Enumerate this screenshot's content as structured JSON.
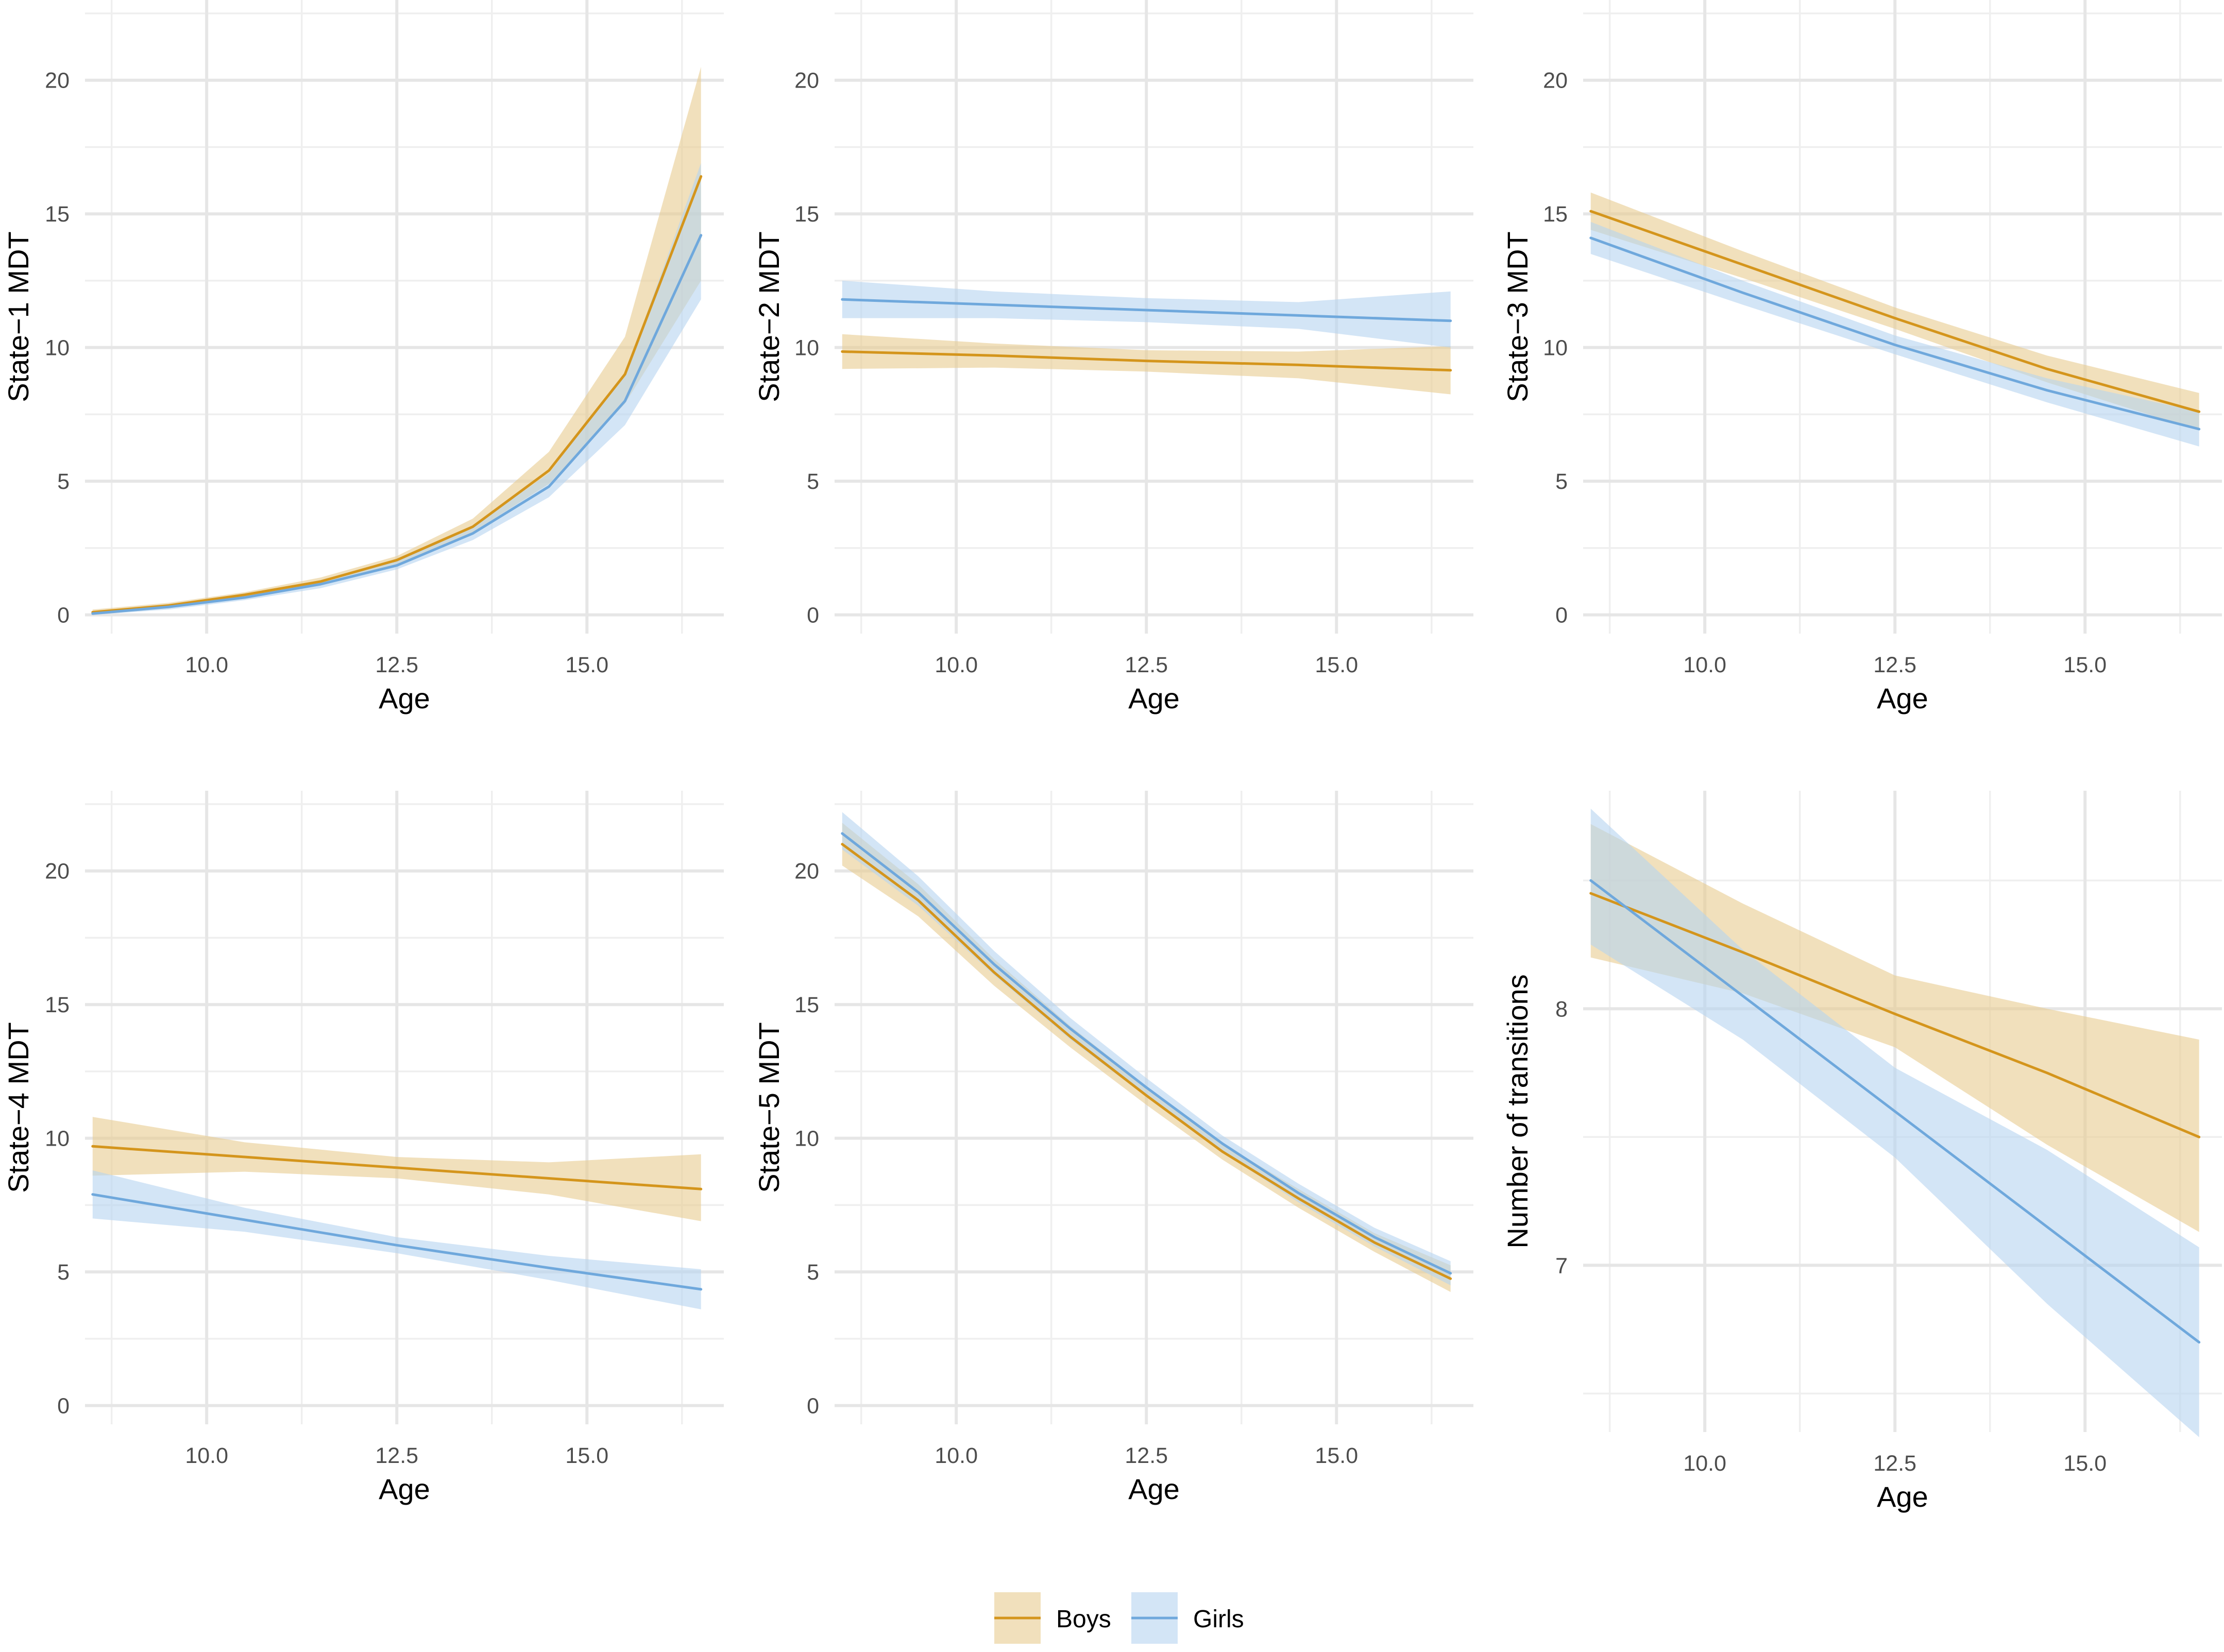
{
  "colors": {
    "boys": "#d4951c",
    "girls": "#6fa8dc",
    "boys_band": "#e8cc90",
    "girls_band": "#b5d3f0"
  },
  "legend": {
    "items": [
      {
        "label": "Boys",
        "color": "#d4951c"
      },
      {
        "label": "Girls",
        "color": "#6fa8dc"
      }
    ]
  },
  "chart_data": [
    {
      "type": "line",
      "xlabel": "Age",
      "ylabel": "State−1 MDT",
      "xlim": [
        8.4,
        16.8
      ],
      "ylim": [
        -0.7,
        23
      ],
      "xticks": [
        "10.0",
        "12.5",
        "15.0"
      ],
      "yticks": [
        "0",
        "5",
        "10",
        "15",
        "20"
      ],
      "series": [
        {
          "name": "Boys",
          "x": [
            8.5,
            9.5,
            10.5,
            11.5,
            12.5,
            13.5,
            14.5,
            15.5,
            16.5
          ],
          "values": [
            0.1,
            0.35,
            0.75,
            1.25,
            2.05,
            3.3,
            5.4,
            9.0,
            16.4
          ],
          "lower": [
            0.0,
            0.25,
            0.65,
            1.1,
            1.9,
            3.1,
            4.9,
            7.9,
            12.5
          ],
          "upper": [
            0.2,
            0.45,
            0.85,
            1.4,
            2.2,
            3.6,
            6.1,
            10.4,
            20.5
          ]
        },
        {
          "name": "Girls",
          "x": [
            8.5,
            9.5,
            10.5,
            11.5,
            12.5,
            13.5,
            14.5,
            15.5,
            16.5
          ],
          "values": [
            0.05,
            0.3,
            0.65,
            1.15,
            1.85,
            3.05,
            4.8,
            8.0,
            14.2
          ],
          "lower": [
            0.0,
            0.2,
            0.55,
            1.0,
            1.7,
            2.8,
            4.4,
            7.1,
            11.8
          ],
          "upper": [
            0.1,
            0.4,
            0.75,
            1.3,
            2.0,
            3.3,
            5.3,
            9.0,
            16.9
          ]
        }
      ]
    },
    {
      "type": "line",
      "xlabel": "Age",
      "ylabel": "State−2 MDT",
      "xlim": [
        8.4,
        16.8
      ],
      "ylim": [
        -0.7,
        23
      ],
      "xticks": [
        "10.0",
        "12.5",
        "15.0"
      ],
      "yticks": [
        "0",
        "5",
        "10",
        "15",
        "20"
      ],
      "series": [
        {
          "name": "Boys",
          "x": [
            8.5,
            10.5,
            12.5,
            14.5,
            16.5
          ],
          "values": [
            9.85,
            9.7,
            9.5,
            9.35,
            9.15
          ],
          "lower": [
            9.2,
            9.25,
            9.1,
            8.85,
            8.25
          ],
          "upper": [
            10.5,
            10.15,
            9.9,
            9.85,
            10.05
          ]
        },
        {
          "name": "Girls",
          "x": [
            8.5,
            10.5,
            12.5,
            14.5,
            16.5
          ],
          "values": [
            11.8,
            11.6,
            11.4,
            11.2,
            11.0
          ],
          "lower": [
            11.1,
            11.1,
            10.95,
            10.7,
            10.0
          ],
          "upper": [
            12.5,
            12.1,
            11.85,
            11.7,
            12.1
          ]
        }
      ]
    },
    {
      "type": "line",
      "xlabel": "Age",
      "ylabel": "State−3 MDT",
      "xlim": [
        8.4,
        16.8
      ],
      "ylim": [
        -0.7,
        23
      ],
      "xticks": [
        "10.0",
        "12.5",
        "15.0"
      ],
      "yticks": [
        "0",
        "5",
        "10",
        "15",
        "20"
      ],
      "series": [
        {
          "name": "Boys",
          "x": [
            8.5,
            10.5,
            12.5,
            14.5,
            16.5
          ],
          "values": [
            15.1,
            13.1,
            11.1,
            9.2,
            7.6
          ],
          "lower": [
            14.4,
            12.6,
            10.7,
            8.7,
            6.9
          ],
          "upper": [
            15.8,
            13.6,
            11.5,
            9.7,
            8.3
          ]
        },
        {
          "name": "Girls",
          "x": [
            8.5,
            10.5,
            12.5,
            14.5,
            16.5
          ],
          "values": [
            14.1,
            12.05,
            10.1,
            8.4,
            6.95
          ],
          "lower": [
            13.5,
            11.6,
            9.75,
            7.95,
            6.3
          ],
          "upper": [
            14.7,
            12.5,
            10.45,
            8.85,
            7.6
          ]
        }
      ]
    },
    {
      "type": "line",
      "xlabel": "Age",
      "ylabel": "State−4 MDT",
      "xlim": [
        8.4,
        16.8
      ],
      "ylim": [
        -0.7,
        23
      ],
      "xticks": [
        "10.0",
        "12.5",
        "15.0"
      ],
      "yticks": [
        "0",
        "5",
        "10",
        "15",
        "20"
      ],
      "series": [
        {
          "name": "Boys",
          "x": [
            8.5,
            10.5,
            12.5,
            14.5,
            16.5
          ],
          "values": [
            9.7,
            9.3,
            8.9,
            8.5,
            8.1
          ],
          "lower": [
            8.6,
            8.75,
            8.5,
            7.9,
            6.9
          ],
          "upper": [
            10.8,
            9.85,
            9.3,
            9.1,
            9.4
          ]
        },
        {
          "name": "Girls",
          "x": [
            8.5,
            10.5,
            12.5,
            14.5,
            16.5
          ],
          "values": [
            7.9,
            6.95,
            6.0,
            5.15,
            4.35
          ],
          "lower": [
            7.0,
            6.5,
            5.7,
            4.7,
            3.6
          ],
          "upper": [
            8.8,
            7.4,
            6.3,
            5.6,
            5.1
          ]
        }
      ]
    },
    {
      "type": "line",
      "xlabel": "Age",
      "ylabel": "State−5 MDT",
      "xlim": [
        8.4,
        16.8
      ],
      "ylim": [
        -0.7,
        23
      ],
      "xticks": [
        "10.0",
        "12.5",
        "15.0"
      ],
      "yticks": [
        "0",
        "5",
        "10",
        "15",
        "20"
      ],
      "series": [
        {
          "name": "Boys",
          "x": [
            8.5,
            9.5,
            10.5,
            11.5,
            12.5,
            13.5,
            14.5,
            15.5,
            16.5
          ],
          "values": [
            21.0,
            18.9,
            16.2,
            13.8,
            11.6,
            9.5,
            7.75,
            6.1,
            4.75
          ],
          "lower": [
            20.2,
            18.3,
            15.7,
            13.4,
            11.25,
            9.2,
            7.4,
            5.75,
            4.25
          ],
          "upper": [
            21.8,
            19.5,
            16.7,
            14.2,
            11.95,
            9.8,
            8.1,
            6.45,
            5.25
          ]
        },
        {
          "name": "Girls",
          "x": [
            8.5,
            9.5,
            10.5,
            11.5,
            12.5,
            13.5,
            14.5,
            15.5,
            16.5
          ],
          "values": [
            21.4,
            19.2,
            16.5,
            14.1,
            11.9,
            9.8,
            7.95,
            6.3,
            4.95
          ],
          "lower": [
            20.8,
            18.7,
            16.1,
            13.7,
            11.55,
            9.5,
            7.6,
            5.95,
            4.5
          ],
          "upper": [
            22.2,
            19.8,
            17.0,
            14.5,
            12.25,
            10.1,
            8.3,
            6.65,
            5.4
          ]
        }
      ]
    },
    {
      "type": "line",
      "xlabel": "Age",
      "ylabel": "Number of transitions",
      "xlim": [
        8.4,
        16.8
      ],
      "ylim": [
        6.35,
        8.85
      ],
      "xticks": [
        "10.0",
        "12.5",
        "15.0"
      ],
      "yticks": [
        "7",
        "8"
      ],
      "series": [
        {
          "name": "Boys",
          "x": [
            8.5,
            10.5,
            12.5,
            14.5,
            16.5
          ],
          "values": [
            8.45,
            8.22,
            7.98,
            7.75,
            7.5
          ],
          "lower": [
            8.2,
            8.06,
            7.85,
            7.47,
            7.13
          ],
          "upper": [
            8.72,
            8.41,
            8.13,
            8.0,
            7.88
          ]
        },
        {
          "name": "Girls",
          "x": [
            8.5,
            10.5,
            12.5,
            14.5,
            16.5
          ],
          "values": [
            8.5,
            8.05,
            7.6,
            7.15,
            6.7
          ],
          "lower": [
            8.25,
            7.88,
            7.42,
            6.85,
            6.33
          ],
          "upper": [
            8.78,
            8.23,
            7.77,
            7.45,
            7.07
          ]
        }
      ]
    }
  ]
}
